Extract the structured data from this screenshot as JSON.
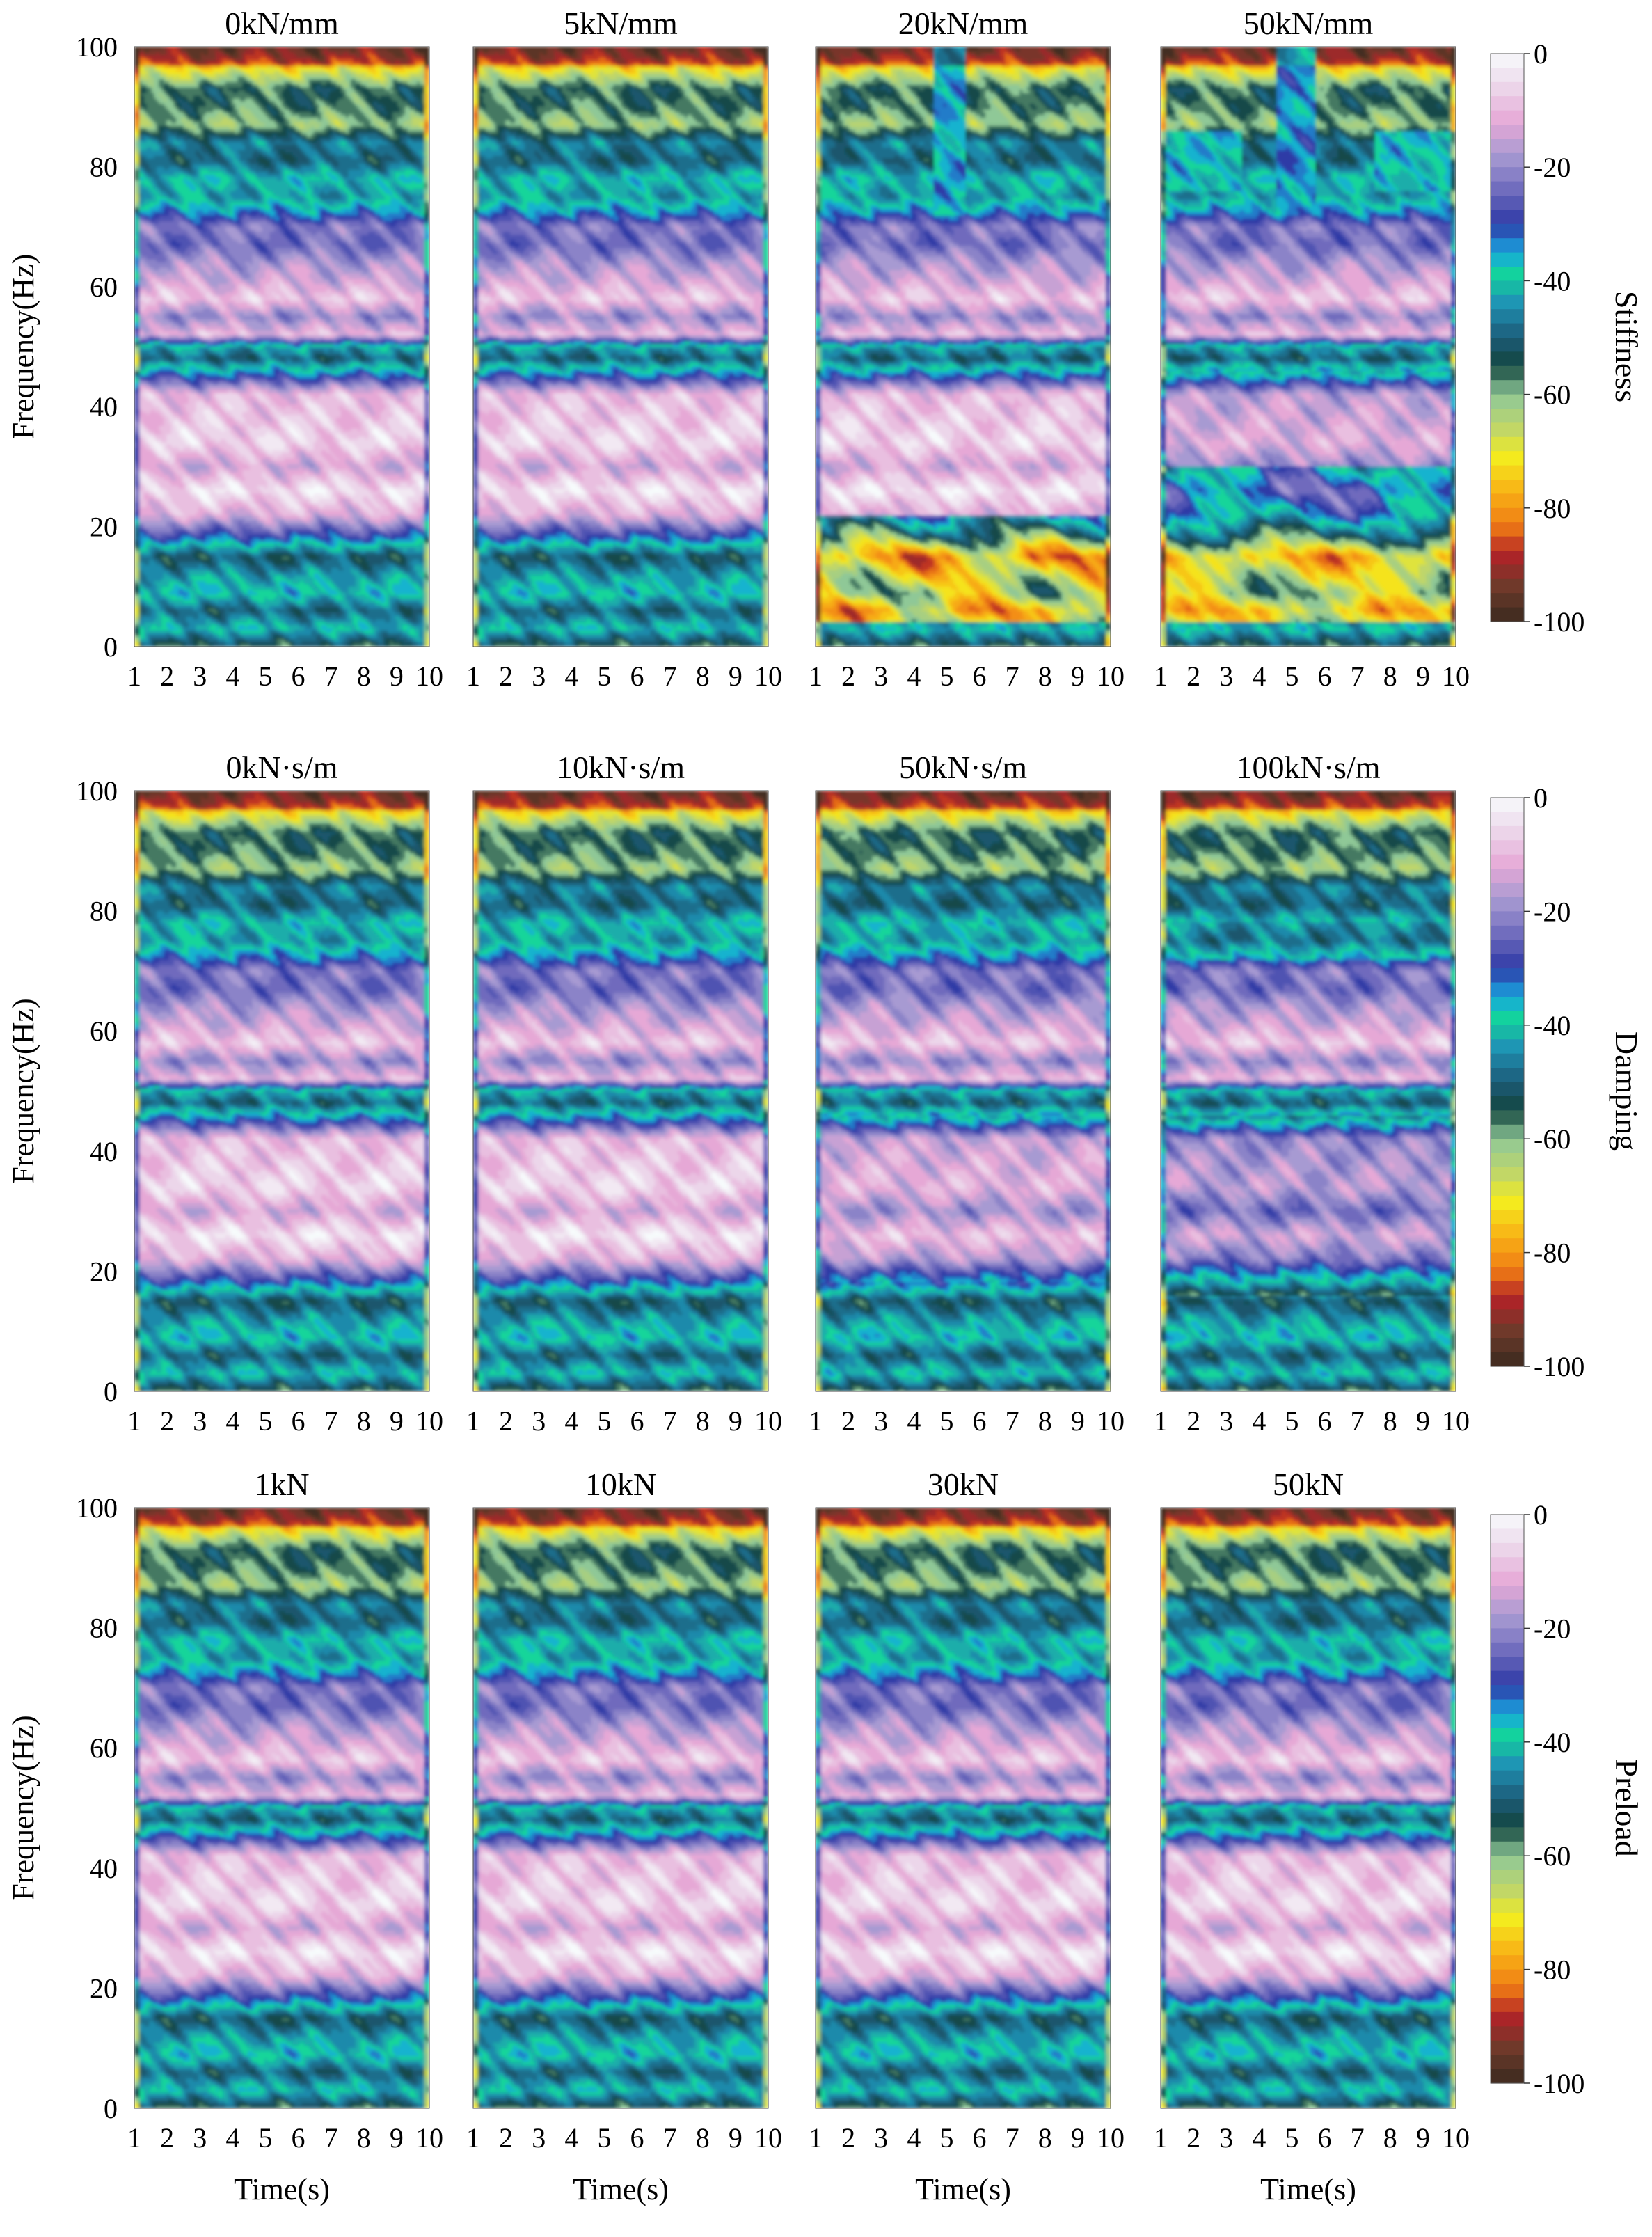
{
  "chart_data": {
    "type": "heatmap",
    "xlabel": "Time(s)",
    "ylabel": "Frequency(Hz)",
    "x_ticks": [
      "1",
      "2",
      "3",
      "4",
      "5",
      "6",
      "7",
      "8",
      "9",
      "10"
    ],
    "y_ticks": [
      "0",
      "20",
      "40",
      "60",
      "80",
      "100"
    ],
    "xlim": [
      1,
      10
    ],
    "ylim": [
      0,
      100
    ],
    "colorbar": {
      "ticks": [
        "0",
        "-20",
        "-40",
        "-60",
        "-80",
        "-100"
      ],
      "range": [
        -100,
        0
      ],
      "stops": [
        {
          "v": 0,
          "color": "#f7fbfc"
        },
        {
          "v": -6,
          "color": "#ecd6ea"
        },
        {
          "v": -12,
          "color": "#e6a8d6"
        },
        {
          "v": -18,
          "color": "#a79ad2"
        },
        {
          "v": -24,
          "color": "#6f6bbd"
        },
        {
          "v": -30,
          "color": "#2f3aa6"
        },
        {
          "v": -35,
          "color": "#18a7e0"
        },
        {
          "v": -39,
          "color": "#13d59a"
        },
        {
          "v": -44,
          "color": "#1f93b5"
        },
        {
          "v": -50,
          "color": "#1c5b78"
        },
        {
          "v": -55,
          "color": "#13453f"
        },
        {
          "v": -60,
          "color": "#8fc897"
        },
        {
          "v": -66,
          "color": "#bfd66a"
        },
        {
          "v": -71,
          "color": "#f4ec1e"
        },
        {
          "v": -77,
          "color": "#f8b316"
        },
        {
          "v": -83,
          "color": "#f07c14"
        },
        {
          "v": -88,
          "color": "#b32228"
        },
        {
          "v": -94,
          "color": "#6d3a2a"
        },
        {
          "v": -100,
          "color": "#3a2a1e"
        }
      ]
    },
    "row_labels": [
      "Stiffness",
      "Damping",
      "Preload"
    ],
    "panels": [
      {
        "row": 0,
        "col": 0,
        "title": "0kN/mm",
        "variant": 0
      },
      {
        "row": 0,
        "col": 1,
        "title": "5kN/mm",
        "variant": 0
      },
      {
        "row": 0,
        "col": 2,
        "title": "20kN/mm",
        "variant": 1
      },
      {
        "row": 0,
        "col": 3,
        "title": "50kN/mm",
        "variant": 2
      },
      {
        "row": 1,
        "col": 0,
        "title": "0kN·s/m",
        "variant": 0
      },
      {
        "row": 1,
        "col": 1,
        "title": "10kN·s/m",
        "variant": 0
      },
      {
        "row": 1,
        "col": 2,
        "title": "50kN·s/m",
        "variant": 3
      },
      {
        "row": 1,
        "col": 3,
        "title": "100kN·s/m",
        "variant": 4
      },
      {
        "row": 2,
        "col": 0,
        "title": "1kN",
        "variant": 0
      },
      {
        "row": 2,
        "col": 1,
        "title": "10kN",
        "variant": 0
      },
      {
        "row": 2,
        "col": 2,
        "title": "30kN",
        "variant": 0
      },
      {
        "row": 2,
        "col": 3,
        "title": "50kN",
        "variant": 0
      }
    ],
    "band_profile_db": {
      "frequency_hz": [
        0,
        3,
        6,
        9,
        12,
        15,
        18,
        22,
        26,
        30,
        34,
        38,
        42,
        45,
        48,
        50,
        52,
        55,
        58,
        61,
        64,
        67,
        70,
        72,
        75,
        78,
        81,
        84,
        87,
        90,
        93,
        96,
        98,
        100
      ],
      "level_db": [
        -55,
        -40,
        -50,
        -38,
        -44,
        -52,
        -32,
        -12,
        -4,
        -14,
        -6,
        -8,
        -10,
        -30,
        -50,
        -42,
        -10,
        -20,
        -8,
        -14,
        -18,
        -24,
        -22,
        -32,
        -44,
        -40,
        -50,
        -46,
        -62,
        -56,
        -55,
        -70,
        -80,
        -85
      ]
    }
  }
}
